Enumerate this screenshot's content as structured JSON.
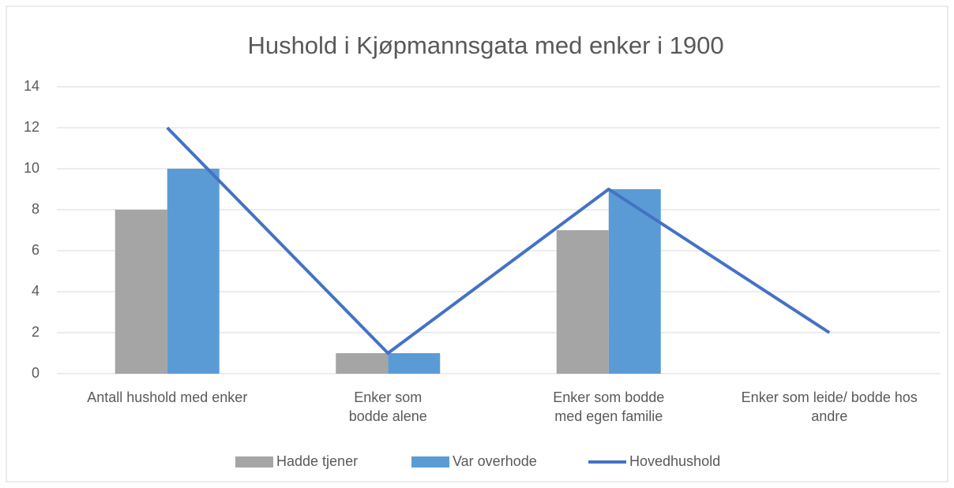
{
  "chart_data": {
    "type": "bar",
    "title": "Hushold i Kjøpmannsgata med enker i 1900",
    "categories": [
      "Antall hushold med enker",
      "Enker som\nbodde alene",
      "Enker som bodde\nmed egen familie",
      "Enker som leide/ bodde hos\nandre"
    ],
    "series": [
      {
        "name": "Hadde tjener",
        "color": "#a5a5a5",
        "type": "bar",
        "values": [
          8,
          1,
          7,
          null
        ]
      },
      {
        "name": "Var overhode",
        "color": "#5b9bd5",
        "type": "bar",
        "values": [
          10,
          1,
          9,
          null
        ]
      },
      {
        "name": "Hovedhushold",
        "color": "#4472c4",
        "type": "line",
        "values": [
          12,
          1,
          9,
          2
        ]
      }
    ],
    "ylim": [
      0,
      14
    ],
    "yticks": [
      0,
      2,
      4,
      6,
      8,
      10,
      12,
      14
    ],
    "grid": true,
    "legend": "bottom"
  }
}
